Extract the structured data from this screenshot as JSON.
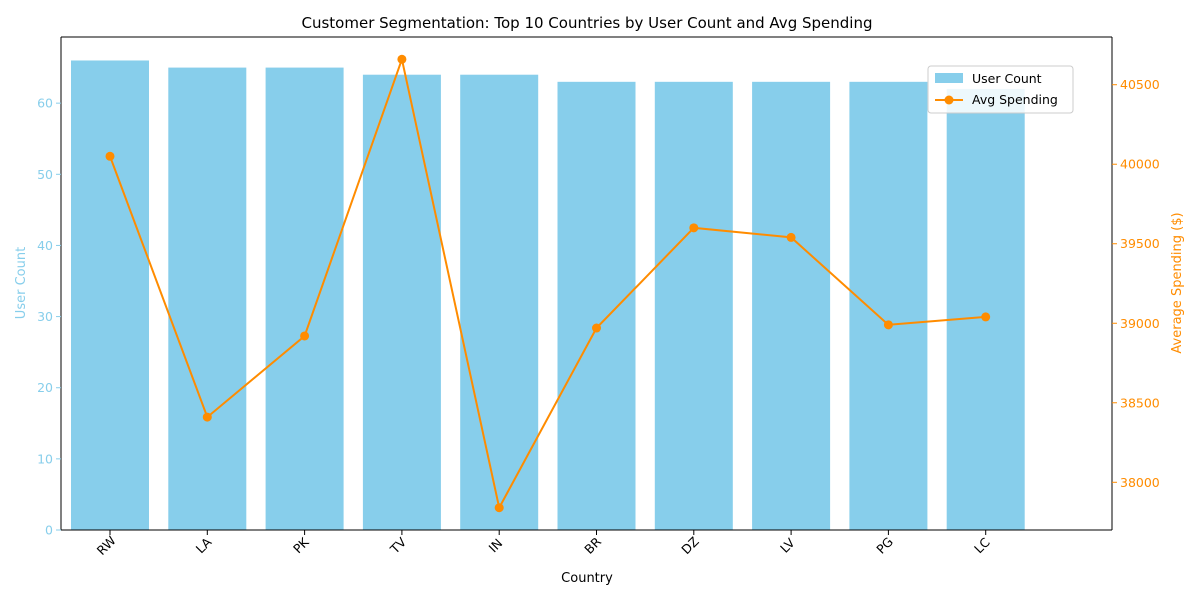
{
  "chart_data": {
    "type": "bar",
    "title": "Customer Segmentation: Top 10 Countries by User Count and Avg Spending",
    "xlabel": "Country",
    "ylabel_left": "User Count",
    "ylabel_right": "Average Spending ($)",
    "categories": [
      "RW",
      "LA",
      "PK",
      "TV",
      "IN",
      "BR",
      "DZ",
      "LV",
      "PG",
      "LC"
    ],
    "series": [
      {
        "name": "User Count",
        "type": "bar",
        "axis": "left",
        "color": "#87ceeb",
        "values": [
          66,
          65,
          65,
          64,
          64,
          63,
          63,
          63,
          63,
          62
        ]
      },
      {
        "name": "Avg Spending",
        "type": "line",
        "axis": "right",
        "color": "#ff8c00",
        "values": [
          40050,
          38410,
          38920,
          40660,
          37840,
          38970,
          39600,
          39540,
          38990,
          39040
        ]
      }
    ],
    "ylim_left": [
      0,
      69.3
    ],
    "ylim_right": [
      37700,
      40800
    ],
    "yticks_left": [
      0,
      10,
      20,
      30,
      40,
      50,
      60
    ],
    "yticks_right": [
      38000,
      38500,
      39000,
      39500,
      40000,
      40500
    ],
    "legend_position": "upper-right",
    "grid": false
  }
}
